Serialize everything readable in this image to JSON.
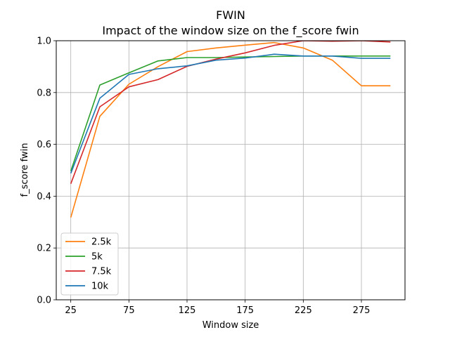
{
  "chart_data": {
    "type": "line",
    "title": "FWIN",
    "subtitle": "Impact of the window size on the f_score fwin",
    "xlabel": "Window size",
    "ylabel": "f_score fwin",
    "xlim": [
      12.5,
      312.5
    ],
    "ylim": [
      0.0,
      1.0
    ],
    "xticks": [
      25,
      75,
      125,
      175,
      225,
      275
    ],
    "xtick_labels": [
      "25",
      "75",
      "125",
      "175",
      "225",
      "275"
    ],
    "yticks": [
      0.0,
      0.2,
      0.4,
      0.6,
      0.8,
      1.0
    ],
    "ytick_labels": [
      "0.0",
      "0.2",
      "0.4",
      "0.6",
      "0.8",
      "1.0"
    ],
    "grid": true,
    "legend_position": "lower-left",
    "x": [
      25,
      50,
      75,
      100,
      125,
      150,
      175,
      200,
      225,
      250,
      275,
      300
    ],
    "series": [
      {
        "name": "2.5k",
        "color": "#ff7f0e",
        "values": [
          0.318,
          0.708,
          0.832,
          0.9,
          0.958,
          0.972,
          0.983,
          0.993,
          0.972,
          0.925,
          0.826,
          0.826
        ]
      },
      {
        "name": "5k",
        "color": "#2ca02c",
        "values": [
          0.497,
          0.829,
          0.876,
          0.922,
          0.935,
          0.935,
          0.937,
          0.939,
          0.941,
          0.941,
          0.941,
          0.941
        ]
      },
      {
        "name": "7.5k",
        "color": "#d62728",
        "values": [
          0.448,
          0.745,
          0.822,
          0.85,
          0.901,
          0.929,
          0.953,
          0.982,
          1.0,
          0.998,
          1.0,
          0.995
        ]
      },
      {
        "name": "10k",
        "color": "#1f77b4",
        "values": [
          0.488,
          0.778,
          0.87,
          0.892,
          0.903,
          0.925,
          0.933,
          0.948,
          0.941,
          0.941,
          0.932,
          0.932
        ]
      }
    ]
  }
}
